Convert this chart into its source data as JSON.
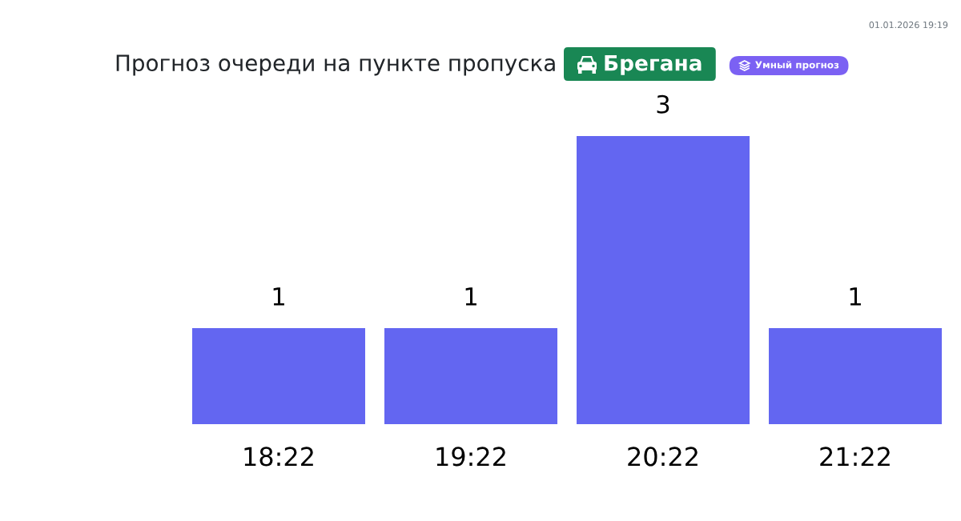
{
  "chart_data": {
    "type": "bar",
    "title": "Прогноз очереди на пункте пропуска",
    "subtitle": "Брегана",
    "categories": [
      "18:22",
      "19:22",
      "20:22",
      "21:22"
    ],
    "values": [
      1,
      1,
      3,
      1
    ],
    "color": "#6366f1",
    "data_labels": true,
    "annotations": [
      "Умный прогноз",
      "01.01.2026 19:19"
    ]
  }
}
